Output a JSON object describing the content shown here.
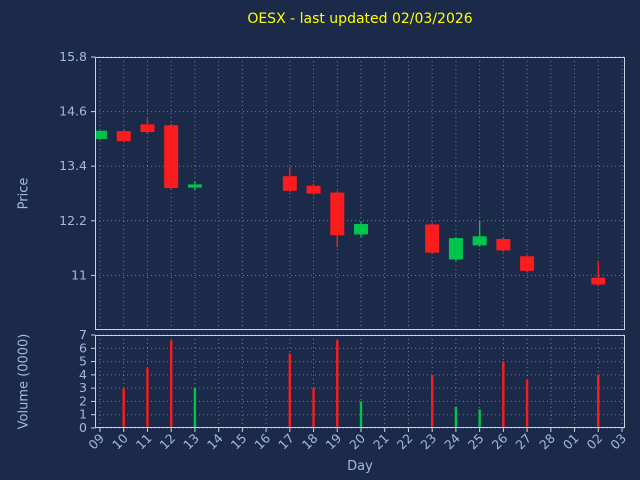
{
  "colors": {
    "background": "#1c2a4a",
    "grid": "#93a1b8",
    "spine": "#c9d2e0",
    "tick_label": "#a4b8e0",
    "axis_label": "#a4b8e0",
    "title": "#ffff00",
    "up": "#00c44c",
    "down": "#fb1d1d"
  },
  "chart_data": {
    "type": "candlestick",
    "panels": [
      "price",
      "volume"
    ],
    "title": "OESX - last updated 02/03/2026",
    "xlabel": "Day",
    "grid": "dotted",
    "legend": "none",
    "price_axis": {
      "label": "Price",
      "ylim": [
        9.8,
        15.8
      ],
      "yticks": [
        11,
        12.2,
        13.4,
        14.6,
        15.8
      ],
      "ytick_labels": [
        "11",
        "12.2",
        "13.4",
        "14.6",
        "15.8"
      ]
    },
    "volume_axis": {
      "label": "Volume (0000)",
      "ylim": [
        0,
        7
      ],
      "yticks": [
        0,
        1,
        2,
        3,
        4,
        5,
        6,
        7
      ],
      "ytick_labels": [
        "0",
        "1",
        "2",
        "3",
        "4",
        "5",
        "6",
        "7"
      ]
    },
    "categories": [
      "09",
      "10",
      "11",
      "12",
      "13",
      "14",
      "15",
      "16",
      "17",
      "18",
      "19",
      "20",
      "21",
      "22",
      "23",
      "24",
      "25",
      "26",
      "27",
      "28",
      "01",
      "02",
      "03"
    ],
    "candles": [
      {
        "day": "09",
        "open": 14.0,
        "high": 14.18,
        "low": 13.98,
        "close": 14.18,
        "volume": 0
      },
      {
        "day": "10",
        "open": 14.17,
        "high": 14.22,
        "low": 13.92,
        "close": 13.95,
        "volume": 3.0
      },
      {
        "day": "11",
        "open": 14.32,
        "high": 14.45,
        "low": 14.12,
        "close": 14.15,
        "volume": 4.5
      },
      {
        "day": "12",
        "open": 14.3,
        "high": 14.33,
        "low": 12.88,
        "close": 12.92,
        "volume": 6.6
      },
      {
        "day": "13",
        "open": 12.93,
        "high": 13.06,
        "low": 12.87,
        "close": 13.0,
        "volume": 3.0
      },
      {
        "day": "17",
        "open": 13.18,
        "high": 13.38,
        "low": 12.83,
        "close": 12.86,
        "volume": 5.6
      },
      {
        "day": "18",
        "open": 12.97,
        "high": 13.01,
        "low": 12.77,
        "close": 12.8,
        "volume": 3.0
      },
      {
        "day": "19",
        "open": 12.82,
        "high": 12.85,
        "low": 11.62,
        "close": 11.88,
        "volume": 6.6
      },
      {
        "day": "20",
        "open": 11.9,
        "high": 12.18,
        "low": 11.85,
        "close": 12.13,
        "volume": 2.0
      },
      {
        "day": "23",
        "open": 12.12,
        "high": 12.15,
        "low": 11.47,
        "close": 11.5,
        "volume": 4.0
      },
      {
        "day": "24",
        "open": 11.35,
        "high": 11.84,
        "low": 11.32,
        "close": 11.82,
        "volume": 1.6
      },
      {
        "day": "25",
        "open": 11.66,
        "high": 12.2,
        "low": 11.63,
        "close": 11.86,
        "volume": 1.4
      },
      {
        "day": "26",
        "open": 11.8,
        "high": 11.83,
        "low": 11.52,
        "close": 11.55,
        "volume": 5.0
      },
      {
        "day": "27",
        "open": 11.42,
        "high": 11.45,
        "low": 11.07,
        "close": 11.1,
        "volume": 3.6
      },
      {
        "day": "02",
        "open": 10.95,
        "high": 11.32,
        "low": 10.76,
        "close": 10.8,
        "volume": 4.0
      }
    ]
  }
}
